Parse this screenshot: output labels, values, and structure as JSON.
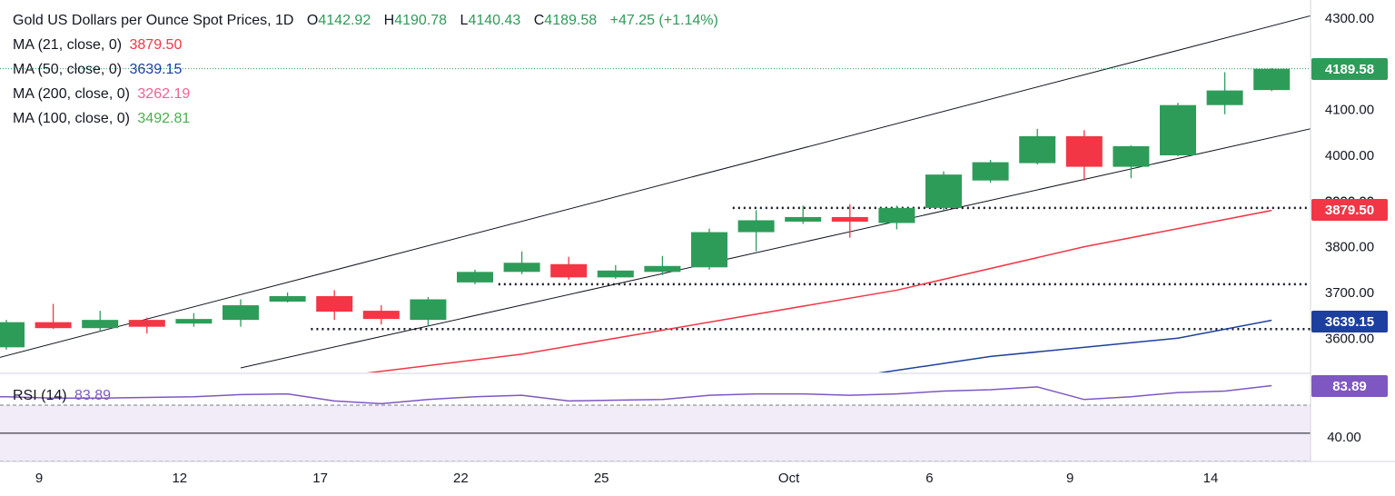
{
  "legend": {
    "title": "Gold US Dollars per Ounce Spot Prices, 1D",
    "o_label": "O",
    "o_value": "4142.92",
    "h_label": "H",
    "h_value": "4190.78",
    "l_label": "L",
    "l_value": "4140.43",
    "c_label": "C",
    "c_value": "4189.58",
    "change": "+47.25 (+1.14%)",
    "ma21_label": "MA (21, close, 0)",
    "ma21_value": "3879.50",
    "ma50_label": "MA (50, close, 0)",
    "ma50_value": "3639.15",
    "ma200_label": "MA (200, close, 0)",
    "ma200_value": "3262.19",
    "ma100_label": "MA (100, close, 0)",
    "ma100_value": "3492.81",
    "rsi_label": "RSI (14)",
    "rsi_value": "83.89"
  },
  "badges": {
    "price": "4189.58",
    "ma21": "3879.50",
    "ma50": "3639.15",
    "rsi": "83.89"
  },
  "colors": {
    "up": "#2e9c59",
    "down": "#f23645",
    "ma21": "#f23645",
    "ma50": "#1c3fa0",
    "ma200": "#f06292",
    "ma100": "#4caf50",
    "rsi": "#7e57c2",
    "price_badge": "#2e9c59",
    "ma21_badge": "#f23645",
    "ma50_badge": "#1c3fa0",
    "rsi_badge": "#7e57c2"
  },
  "chart_data": {
    "type": "candlestick",
    "title": "Gold US Dollars per Ounce Spot Prices, 1D",
    "price_axis_ticks": [
      4300,
      4100,
      4000,
      3900,
      3800,
      3700,
      3600
    ],
    "price_axis_tick_labels": [
      "4300.00",
      "4100.00",
      "4000.00",
      "3900.00",
      "3800.00",
      "3700.00",
      "3600.00"
    ],
    "price_range": [
      3525,
      4330
    ],
    "x_tick_labels": [
      {
        "i": 0,
        "label": "9"
      },
      {
        "i": 3,
        "label": "12"
      },
      {
        "i": 6,
        "label": "17"
      },
      {
        "i": 9,
        "label": "22"
      },
      {
        "i": 12,
        "label": "25"
      },
      {
        "i": 16,
        "label": "Oct"
      },
      {
        "i": 19,
        "label": "6"
      },
      {
        "i": 22,
        "label": "9"
      },
      {
        "i": 25,
        "label": "14"
      }
    ],
    "candles": [
      {
        "o": 3580,
        "h": 3640,
        "l": 3575,
        "c": 3635
      },
      {
        "o": 3635,
        "h": 3675,
        "l": 3620,
        "c": 3622
      },
      {
        "o": 3622,
        "h": 3660,
        "l": 3615,
        "c": 3640
      },
      {
        "o": 3640,
        "h": 3645,
        "l": 3610,
        "c": 3625
      },
      {
        "o": 3632,
        "h": 3655,
        "l": 3625,
        "c": 3642
      },
      {
        "o": 3640,
        "h": 3685,
        "l": 3625,
        "c": 3672
      },
      {
        "o": 3680,
        "h": 3700,
        "l": 3678,
        "c": 3692
      },
      {
        "o": 3692,
        "h": 3705,
        "l": 3640,
        "c": 3658
      },
      {
        "o": 3660,
        "h": 3672,
        "l": 3630,
        "c": 3642
      },
      {
        "o": 3640,
        "h": 3690,
        "l": 3628,
        "c": 3685
      },
      {
        "o": 3722,
        "h": 3750,
        "l": 3718,
        "c": 3745
      },
      {
        "o": 3745,
        "h": 3790,
        "l": 3740,
        "c": 3765
      },
      {
        "o": 3762,
        "h": 3778,
        "l": 3728,
        "c": 3733
      },
      {
        "o": 3733,
        "h": 3760,
        "l": 3730,
        "c": 3748
      },
      {
        "o": 3745,
        "h": 3780,
        "l": 3738,
        "c": 3758
      },
      {
        "o": 3755,
        "h": 3840,
        "l": 3750,
        "c": 3832
      },
      {
        "o": 3832,
        "h": 3880,
        "l": 3790,
        "c": 3858
      },
      {
        "o": 3855,
        "h": 3890,
        "l": 3850,
        "c": 3865
      },
      {
        "o": 3865,
        "h": 3893,
        "l": 3820,
        "c": 3855
      },
      {
        "o": 3852,
        "h": 3890,
        "l": 3838,
        "c": 3885
      },
      {
        "o": 3885,
        "h": 3965,
        "l": 3880,
        "c": 3958
      },
      {
        "o": 3945,
        "h": 3990,
        "l": 3940,
        "c": 3985
      },
      {
        "o": 3983,
        "h": 4058,
        "l": 3980,
        "c": 4042
      },
      {
        "o": 4042,
        "h": 4055,
        "l": 3945,
        "c": 3975
      },
      {
        "o": 3975,
        "h": 4022,
        "l": 3950,
        "c": 4020
      },
      {
        "o": 4000,
        "h": 4115,
        "l": 3998,
        "c": 4110
      },
      {
        "o": 4110,
        "h": 4182,
        "l": 4090,
        "c": 4142
      },
      {
        "o": 4142.92,
        "h": 4190.78,
        "l": 4140.43,
        "c": 4189.58
      }
    ],
    "moving_averages": [
      {
        "name": "MA (21, close, 0)",
        "points": [
          [
            7,
            3515
          ],
          [
            11,
            3565
          ],
          [
            15,
            3635
          ],
          [
            19,
            3705
          ],
          [
            23,
            3800
          ],
          [
            27,
            3879.5
          ]
        ]
      },
      {
        "name": "MA (50, close, 0)",
        "points": [
          [
            18.5,
            3522
          ],
          [
            21,
            3560
          ],
          [
            25,
            3600
          ],
          [
            27,
            3639.15
          ]
        ]
      }
    ],
    "trend_lines": [
      {
        "from": [
          -1,
          3535
        ],
        "to": [
          28,
          4310
        ]
      },
      {
        "from": [
          5,
          3535
        ],
        "to": [
          28,
          4062
        ]
      }
    ],
    "support_levels": [
      {
        "price": 3620,
        "from_index": 6.5
      },
      {
        "price": 3718,
        "from_index": 10.5
      },
      {
        "price": 3885,
        "from_index": 15.5
      }
    ],
    "rsi": {
      "name": "RSI (14)",
      "values": [
        76,
        75,
        75,
        75.5,
        76,
        77.5,
        78,
        73,
        71,
        74,
        76,
        77,
        73,
        73.5,
        74,
        77,
        78,
        78,
        77,
        78,
        80,
        81,
        83,
        74,
        76,
        79,
        80,
        83.89
      ],
      "range": [
        35,
        92
      ],
      "upper_band": 70,
      "lower_band": 30,
      "mid_line": 50,
      "tick_labels": [
        "40.00"
      ]
    }
  }
}
